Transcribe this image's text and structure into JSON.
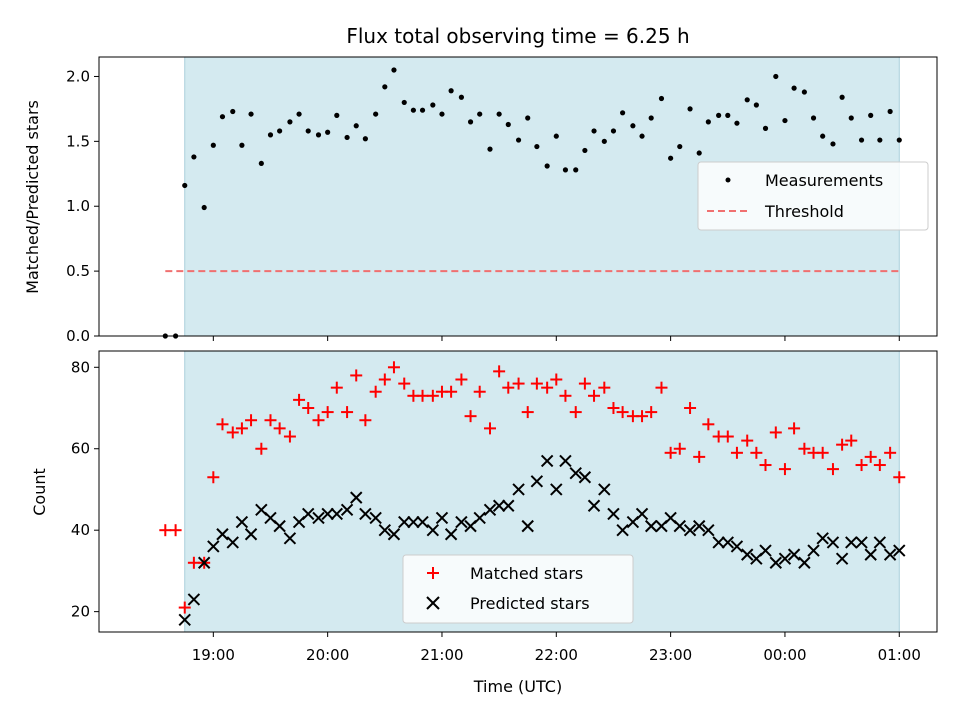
{
  "chart_data": [
    {
      "type": "scatter",
      "title": "Flux total observing time = 6.25 h",
      "xlabel": "",
      "ylabel": "Matched/Predicted stars",
      "ylim": [
        0,
        2.15
      ],
      "yticks": [
        "0.0",
        "0.5",
        "1.0",
        "1.5",
        "2.0"
      ],
      "shaded_window": {
        "start": 18.75,
        "end": 25.0,
        "color": "#d4eaf0"
      },
      "legend": {
        "placement": "center-right",
        "entries": [
          "Measurements",
          "Threshold"
        ]
      },
      "threshold": {
        "name": "Threshold",
        "y": 0.5,
        "x_range": [
          18.58,
          25.0
        ],
        "color": "#f07070"
      },
      "series": [
        {
          "name": "Measurements",
          "color": "#000000",
          "x": [
            18.58,
            18.67,
            18.75,
            18.83,
            18.92,
            19.0,
            19.08,
            19.17,
            19.25,
            19.33,
            19.42,
            19.5,
            19.58,
            19.67,
            19.75,
            19.83,
            19.92,
            20.0,
            20.08,
            20.17,
            20.25,
            20.33,
            20.42,
            20.5,
            20.58,
            20.67,
            20.75,
            20.83,
            20.92,
            21.0,
            21.08,
            21.17,
            21.25,
            21.33,
            21.42,
            21.5,
            21.58,
            21.67,
            21.75,
            21.83,
            21.92,
            22.0,
            22.08,
            22.17,
            22.25,
            22.33,
            22.42,
            22.5,
            22.58,
            22.67,
            22.75,
            22.83,
            22.92,
            23.0,
            23.08,
            23.17,
            23.25,
            23.33,
            23.42,
            23.5,
            23.58,
            23.67,
            23.75,
            23.83,
            23.92,
            24.0,
            24.08,
            24.17,
            24.25,
            24.33,
            24.42,
            24.5,
            24.58,
            24.67,
            24.75,
            24.83,
            24.92,
            25.0
          ],
          "y": [
            0.0,
            0.0,
            1.16,
            1.38,
            0.99,
            1.47,
            1.69,
            1.73,
            1.47,
            1.71,
            1.33,
            1.55,
            1.58,
            1.65,
            1.71,
            1.58,
            1.55,
            1.57,
            1.7,
            1.53,
            1.62,
            1.52,
            1.71,
            1.92,
            2.05,
            1.8,
            1.74,
            1.74,
            1.78,
            1.71,
            1.89,
            1.84,
            1.65,
            1.71,
            1.44,
            1.71,
            1.63,
            1.51,
            1.68,
            1.46,
            1.31,
            1.54,
            1.28,
            1.28,
            1.43,
            1.58,
            1.5,
            1.58,
            1.72,
            1.62,
            1.54,
            1.68,
            1.83,
            1.37,
            1.46,
            1.75,
            1.41,
            1.65,
            1.7,
            1.7,
            1.64,
            1.82,
            1.78,
            1.6,
            2.0,
            1.66,
            1.91,
            1.88,
            1.68,
            1.54,
            1.48,
            1.84,
            1.68,
            1.51,
            1.7,
            1.51,
            1.73,
            1.51
          ]
        }
      ]
    },
    {
      "type": "scatter",
      "title": "",
      "xlabel": "Time (UTC)",
      "ylabel": "Count",
      "ylim": [
        15,
        84
      ],
      "yticks": [
        "20",
        "40",
        "60",
        "80"
      ],
      "xlim": [
        18.0,
        25.33
      ],
      "x_tick_values": [
        19,
        20,
        21,
        22,
        23,
        24,
        25
      ],
      "x_tick_labels": [
        "19:00",
        "20:00",
        "21:00",
        "22:00",
        "23:00",
        "00:00",
        "01:00"
      ],
      "shaded_window": {
        "start": 18.75,
        "end": 25.0,
        "color": "#d4eaf0"
      },
      "legend": {
        "placement": "bottom-center",
        "entries": [
          "Matched stars",
          "Predicted stars"
        ]
      },
      "series": [
        {
          "name": "Matched stars",
          "marker": "plus",
          "color": "#ff0000",
          "x": [
            18.58,
            18.67,
            18.75,
            18.83,
            18.92,
            19.0,
            19.08,
            19.17,
            19.25,
            19.33,
            19.42,
            19.5,
            19.58,
            19.67,
            19.75,
            19.83,
            19.92,
            20.0,
            20.08,
            20.17,
            20.25,
            20.33,
            20.42,
            20.5,
            20.58,
            20.67,
            20.75,
            20.83,
            20.92,
            21.0,
            21.08,
            21.17,
            21.25,
            21.33,
            21.42,
            21.5,
            21.58,
            21.67,
            21.75,
            21.83,
            21.92,
            22.0,
            22.08,
            22.17,
            22.25,
            22.33,
            22.42,
            22.5,
            22.58,
            22.67,
            22.75,
            22.83,
            22.92,
            23.0,
            23.08,
            23.17,
            23.25,
            23.33,
            23.42,
            23.5,
            23.58,
            23.67,
            23.75,
            23.83,
            23.92,
            24.0,
            24.08,
            24.17,
            24.25,
            24.33,
            24.42,
            24.5,
            24.58,
            24.67,
            24.75,
            24.83,
            24.92,
            25.0
          ],
          "y": [
            40,
            40,
            21,
            32,
            32,
            53,
            66,
            64,
            65,
            67,
            60,
            67,
            65,
            63,
            72,
            70,
            67,
            69,
            75,
            69,
            78,
            67,
            74,
            77,
            80,
            76,
            73,
            73,
            73,
            74,
            74,
            77,
            68,
            74,
            65,
            79,
            75,
            76,
            69,
            76,
            75,
            77,
            73,
            69,
            76,
            73,
            75,
            70,
            69,
            68,
            68,
            69,
            75,
            59,
            60,
            70,
            58,
            66,
            63,
            63,
            59,
            62,
            59,
            56,
            64,
            55,
            65,
            60,
            59,
            59,
            55,
            61,
            62,
            56,
            58,
            56,
            59,
            53
          ]
        },
        {
          "name": "Predicted stars",
          "marker": "x",
          "color": "#000000",
          "x": [
            18.75,
            18.83,
            18.92,
            19.0,
            19.08,
            19.17,
            19.25,
            19.33,
            19.42,
            19.5,
            19.58,
            19.67,
            19.75,
            19.83,
            19.92,
            20.0,
            20.08,
            20.17,
            20.25,
            20.33,
            20.42,
            20.5,
            20.58,
            20.67,
            20.75,
            20.83,
            20.92,
            21.0,
            21.08,
            21.17,
            21.25,
            21.33,
            21.42,
            21.5,
            21.58,
            21.67,
            21.75,
            21.83,
            21.92,
            22.0,
            22.08,
            22.17,
            22.25,
            22.33,
            22.42,
            22.5,
            22.58,
            22.67,
            22.75,
            22.83,
            22.92,
            23.0,
            23.08,
            23.17,
            23.25,
            23.33,
            23.42,
            23.5,
            23.58,
            23.67,
            23.75,
            23.83,
            23.92,
            24.0,
            24.08,
            24.17,
            24.25,
            24.33,
            24.42,
            24.5,
            24.58,
            24.67,
            24.75,
            24.83,
            24.92,
            25.0
          ],
          "y": [
            18,
            23,
            32,
            36,
            39,
            37,
            42,
            39,
            45,
            43,
            41,
            38,
            42,
            44,
            43,
            44,
            44,
            45,
            48,
            44,
            43,
            40,
            39,
            42,
            42,
            42,
            40,
            43,
            39,
            42,
            41,
            43,
            45,
            46,
            46,
            50,
            41,
            52,
            57,
            50,
            57,
            54,
            53,
            46,
            50,
            44,
            40,
            42,
            44,
            41,
            41,
            43,
            41,
            40,
            41,
            40,
            37,
            37,
            36,
            34,
            33,
            35,
            32,
            33,
            34,
            32,
            35,
            38,
            37,
            33,
            37,
            37,
            34,
            37,
            34,
            35
          ]
        }
      ]
    }
  ]
}
